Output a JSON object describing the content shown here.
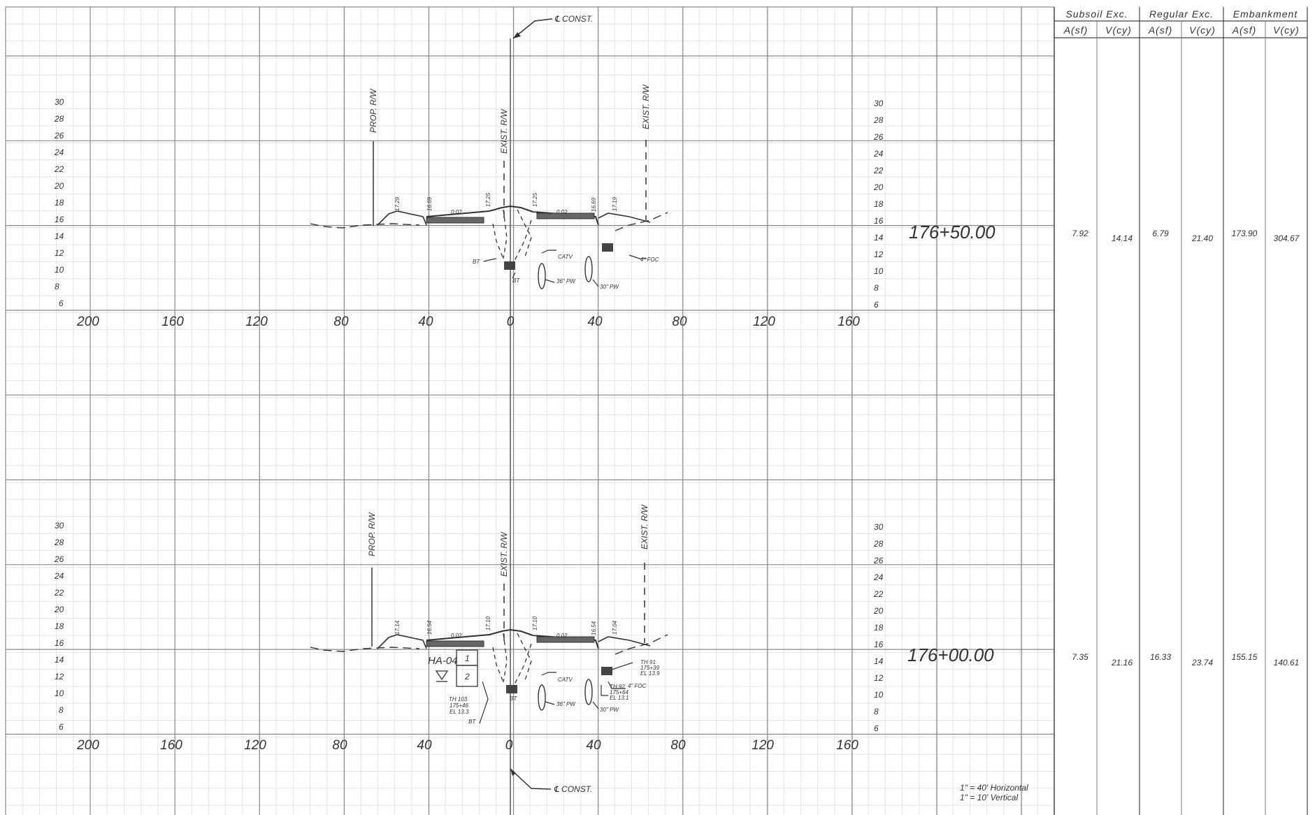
{
  "table": {
    "groups": [
      "Subsoil Exc.",
      "Regular Exc.",
      "Embankment"
    ],
    "subheaders": [
      "A(sf)",
      "V(cy)",
      "A(sf)",
      "V(cy)",
      "A(sf)",
      "V(cy)"
    ],
    "rows": [
      {
        "values": [
          "7.92",
          "14.14",
          "6.79",
          "21.40",
          "173.90",
          "304.67"
        ]
      },
      {
        "values": [
          "7.35",
          "21.16",
          "16.33",
          "23.74",
          "155.15",
          "140.61"
        ]
      }
    ]
  },
  "sections": [
    {
      "station": "176+50.00",
      "elevations": [
        "30",
        "28",
        "26",
        "24",
        "22",
        "20",
        "18",
        "16",
        "14",
        "12",
        "10",
        "8",
        "6"
      ],
      "offsets": [
        "200",
        "160",
        "120",
        "80",
        "40",
        "0",
        "40",
        "80",
        "120",
        "160"
      ],
      "row_labels": {
        "prop_rw": "PROP. R/W",
        "exist_rw_left": "EXIST. R/W",
        "exist_rw_right": "EXIST. R/W"
      },
      "grade_labels": [
        "17.29",
        "16.69",
        "17.25",
        "17.25",
        "16.69",
        "17.19"
      ],
      "slope_labels": [
        "0.02",
        "0.02"
      ],
      "utility_labels": [
        "BT",
        "BT",
        "CATV",
        "36\" PW",
        "30\" PW",
        "4\" FOC"
      ]
    },
    {
      "station": "176+00.00",
      "elevations": [
        "30",
        "28",
        "26",
        "24",
        "22",
        "20",
        "18",
        "16",
        "14",
        "12",
        "10",
        "8",
        "6"
      ],
      "offsets": [
        "200",
        "160",
        "120",
        "80",
        "40",
        "0",
        "40",
        "80",
        "120",
        "160"
      ],
      "row_labels": {
        "prop_rw": "PROP. R/W",
        "exist_rw_left": "EXIST. R/W",
        "exist_rw_right": "EXIST. R/W"
      },
      "grade_labels": [
        "17.14",
        "16.54",
        "17.10",
        "17.10",
        "16.54",
        "17.04"
      ],
      "slope_labels": [
        "0.02",
        "0.02"
      ],
      "utility_labels": [
        "BT",
        "BT",
        "CATV",
        "36\" PW",
        "30\" PW",
        "4\" FOC"
      ],
      "boring": {
        "id": "HA-04",
        "layers": [
          "1",
          "2"
        ]
      },
      "test_holes": [
        {
          "lines": [
            "TH 103",
            "175+46",
            "EL 13.3"
          ]
        },
        {
          "lines": [
            "TH 91",
            "175+39",
            "EL 13.9"
          ]
        },
        {
          "lines": [
            "TH 92",
            "175+64",
            "EL 13.1"
          ]
        }
      ]
    }
  ],
  "centerline": {
    "top": "℄ CONST.",
    "bottom": "℄ CONST."
  },
  "scale_note": [
    "1\" = 40' Horizontal",
    "1\" = 10' Vertical"
  ]
}
